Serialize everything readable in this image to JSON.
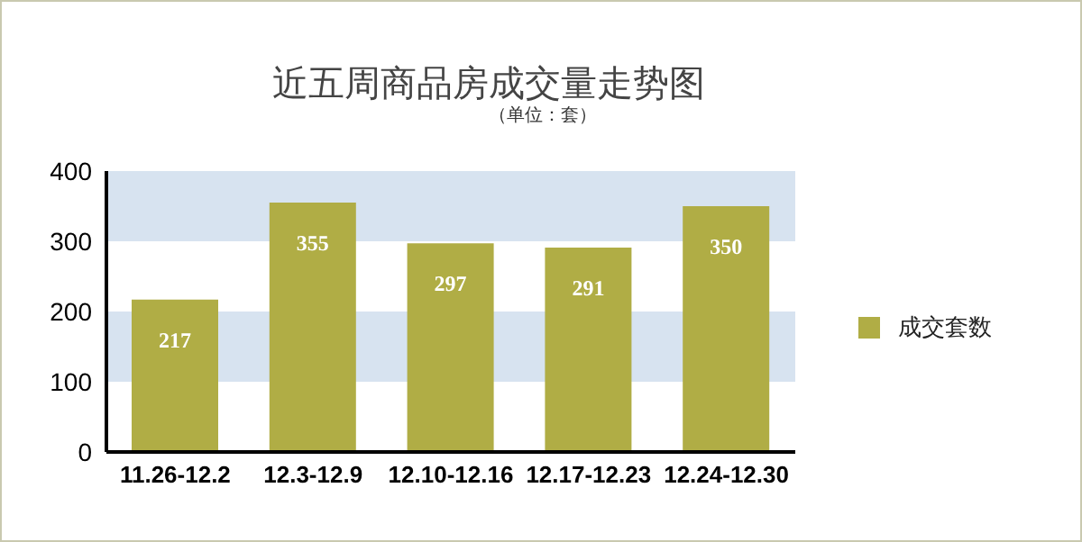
{
  "chart_data": {
    "type": "bar",
    "title": "近五周商品房成交量走势图",
    "subtitle": "（单位：套）",
    "categories": [
      "11.26-12.2",
      "12.3-12.9",
      "12.10-12.16",
      "12.17-12.23",
      "12.24-12.30"
    ],
    "series": [
      {
        "name": "成交套数",
        "color": "#b0ad45",
        "values": [
          217,
          355,
          297,
          291,
          350
        ]
      }
    ],
    "ylim": [
      0,
      400
    ],
    "yticks": [
      0,
      100,
      200,
      300,
      400
    ],
    "bands": [
      {
        "axis": "y",
        "from": 100,
        "to": 200,
        "color": "#d7e3f0"
      },
      {
        "axis": "y",
        "from": 300,
        "to": 400,
        "color": "#d7e3f0"
      }
    ],
    "data_labels": true,
    "legend": "right",
    "grid": false
  }
}
